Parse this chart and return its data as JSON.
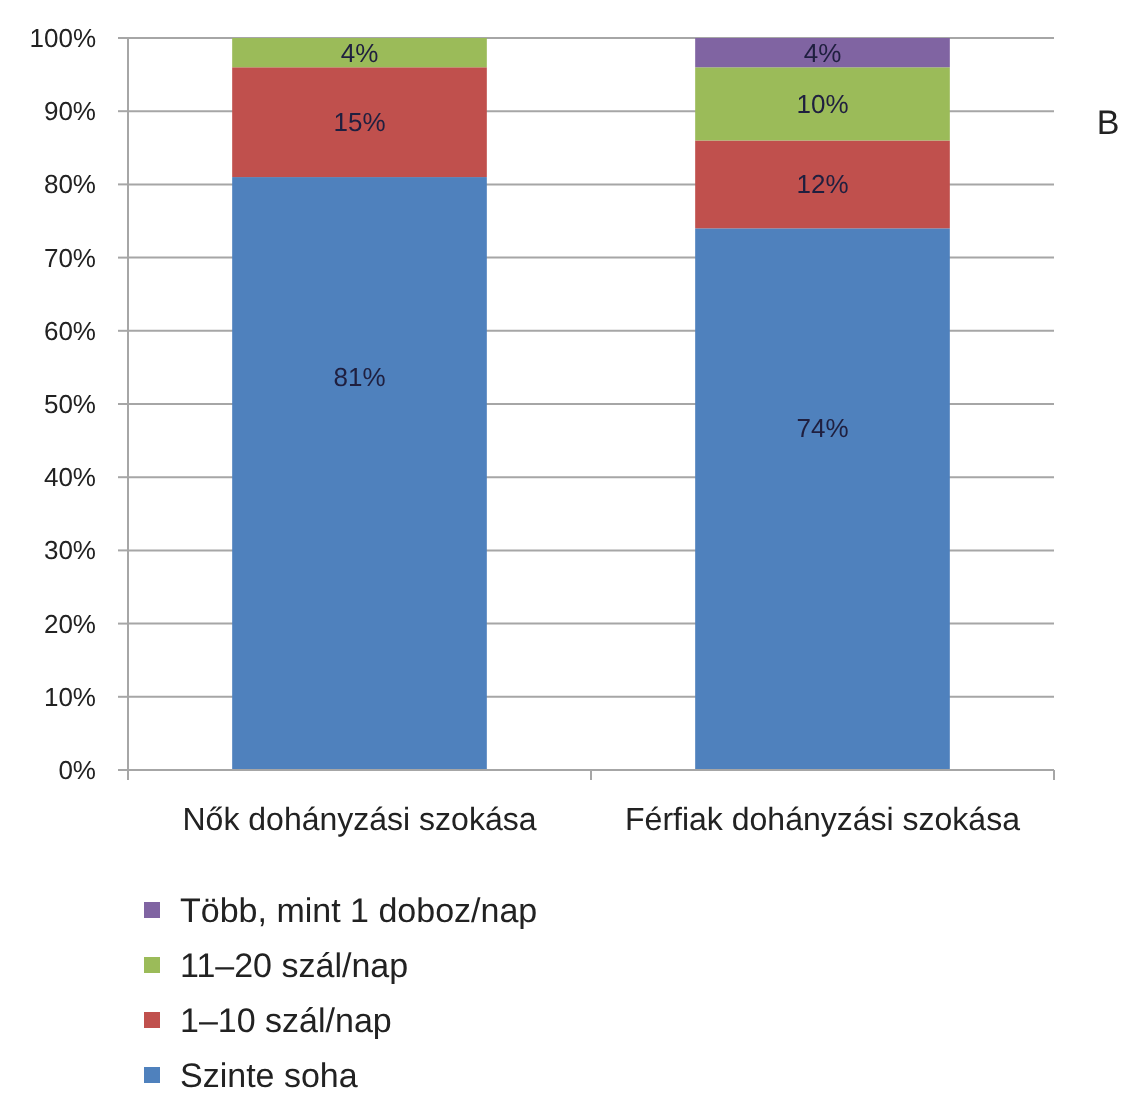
{
  "chart_data": {
    "type": "bar",
    "stacked": true,
    "categories": [
      "Nők dohányzási szokása",
      "Férfiak dohányzási szokása"
    ],
    "series": [
      {
        "name": "Szinte soha",
        "color": "#4f81bd",
        "values": [
          81,
          74
        ],
        "value_labels": [
          "81%",
          "74%"
        ]
      },
      {
        "name": "1–10 szál/nap",
        "color": "#c0504d",
        "values": [
          15,
          12
        ],
        "value_labels": [
          "15%",
          "12%"
        ]
      },
      {
        "name": "11–20 szál/nap",
        "color": "#9bbb59",
        "values": [
          4,
          10
        ],
        "value_labels": [
          "4%",
          "10%"
        ]
      },
      {
        "name": "Több, mint 1 doboz/nap",
        "color": "#8064a2",
        "values": [
          null,
          4
        ],
        "value_labels": [
          null,
          "4%"
        ]
      }
    ],
    "ylim": [
      0,
      100
    ],
    "yticks": [
      {
        "value": 0,
        "label": "0%"
      },
      {
        "value": 10,
        "label": "10%"
      },
      {
        "value": 20,
        "label": "20%"
      },
      {
        "value": 30,
        "label": "30%"
      },
      {
        "value": 40,
        "label": "40%"
      },
      {
        "value": 50,
        "label": "50%"
      },
      {
        "value": 60,
        "label": "60%"
      },
      {
        "value": 70,
        "label": "70%"
      },
      {
        "value": 80,
        "label": "80%"
      },
      {
        "value": 90,
        "label": "90%"
      },
      {
        "value": 100,
        "label": "100%"
      }
    ],
    "grid": "y",
    "legend": "bottom",
    "annotations": [
      "B"
    ]
  }
}
